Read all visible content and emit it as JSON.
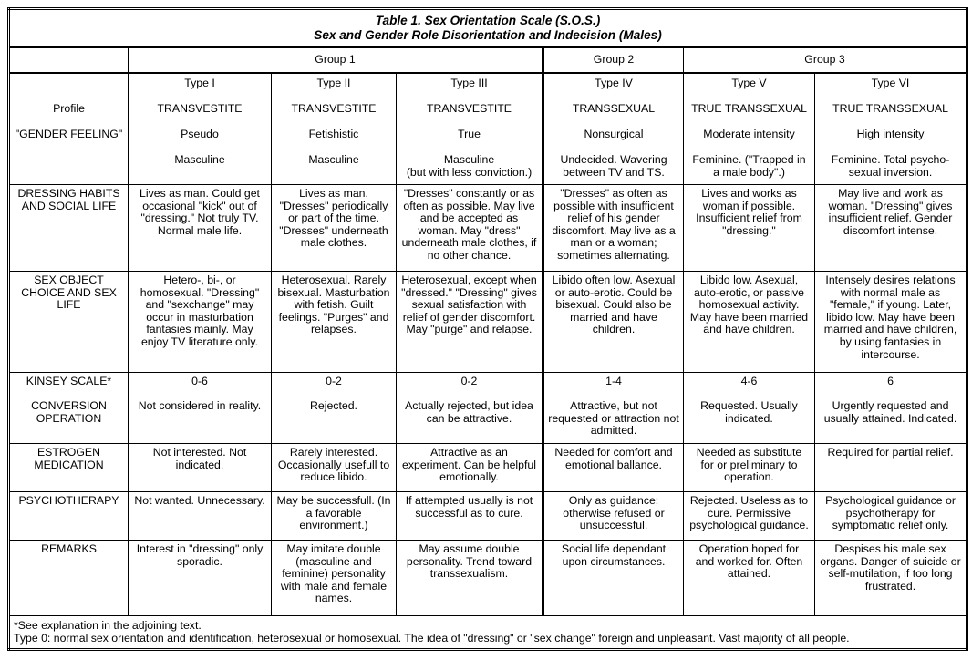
{
  "title": {
    "line1": "Table 1. Sex Orientation Scale (S.O.S.)",
    "line2": "Sex and Gender Role Disorientation and Indecision (Males)"
  },
  "groups": [
    {
      "label": "Group 1",
      "span": 3
    },
    {
      "label": "Group 2",
      "span": 1
    },
    {
      "label": "Group 3",
      "span": 2
    }
  ],
  "profile": {
    "label_lines": [
      "",
      "Profile",
      "\"GENDER FEELING\"",
      ""
    ],
    "types": [
      [
        "Type I",
        "TRANSVESTITE",
        "Pseudo",
        "Masculine"
      ],
      [
        "Type II",
        "TRANSVESTITE",
        "Fetishistic",
        "Masculine"
      ],
      [
        "Type III",
        "TRANSVESTITE",
        "True",
        "Masculine\n(but with less conviction.)"
      ],
      [
        "Type IV",
        "TRANSSEXUAL",
        "Nonsurgical",
        "Undecided. Wavering\nbetween TV and TS."
      ],
      [
        "Type V",
        "TRUE TRANSSEXUAL",
        "Moderate intensity",
        "Feminine. (\"Trapped in\na male body\".)"
      ],
      [
        "Type VI",
        "TRUE TRANSSEXUAL",
        "High intensity",
        "Feminine. Total psycho-\nsexual inversion."
      ]
    ]
  },
  "rows": [
    {
      "label": "DRESSING HABITS\nAND SOCIAL LIFE",
      "cells": [
        "Lives as man. Could get\noccasional \"kick\" out of\n\"dressing.\" Not truly TV.\nNormal male life.",
        "Lives as man.\n\"Dresses\" periodically\nor part of the time.\n\"Dresses\" underneath\nmale clothes.",
        "\"Dresses\" constantly or as\noften as possible. May live\nand be accepted as\nwoman. May \"dress\"\nunderneath male clothes, if\nno other chance.",
        "\"Dresses\" as often as\npossible with insufficient\nrelief of his gender\ndiscomfort. May live as a\nman or a woman;\nsometimes alternating.",
        "Lives and works as\nwoman if possible.\nInsufficient relief from\n\"dressing.\"",
        "May live and work as\nwoman. \"Dressing\" gives\ninsufficient relief. Gender\ndiscomfort intense."
      ]
    },
    {
      "label": "SEX OBJECT\nCHOICE AND SEX\nLIFE",
      "cells": [
        "Hetero-, bi-, or\nhomosexual. \"Dressing\"\nand \"sexchange\" may\noccur in masturbation\nfantasies mainly. May\nenjoy TV literature only.",
        "Heterosexual. Rarely\nbisexual. Masturbation\nwith fetish. Guilt\nfeelings. \"Purges\" and\nrelapses.",
        "Heterosexual, except when\n\"dressed.\" \"Dressing\" gives\nsexual satisfaction with\nrelief of gender discomfort.\nMay \"purge\" and relapse.",
        "Libido often low. Asexual\nor auto-erotic. Could be\nbisexual. Could also be\nmarried and have\nchildren.",
        "Libido low. Asexual,\nauto-erotic, or passive\nhomosexual activity.\nMay have been married\nand have children.",
        "Intensely desires relations\nwith normal male as\n\"female,\" if young. Later,\nlibido low. May have been\nmarried and have children,\nby using fantasies in\nintercourse."
      ]
    },
    {
      "label": "KINSEY SCALE*",
      "cells": [
        "0-6",
        "0-2",
        "0-2",
        "1-4",
        "4-6",
        "6"
      ]
    },
    {
      "label": "CONVERSION\nOPERATION",
      "cells": [
        "Not considered in reality.",
        "Rejected.",
        "Actually rejected, but idea\ncan be attractive.",
        "Attractive, but not\nrequested or attraction not\nadmitted.",
        "Requested. Usually\nindicated.",
        "Urgently requested and\nusually attained. Indicated."
      ]
    },
    {
      "label": "ESTROGEN\nMEDICATION",
      "cells": [
        "Not interested. Not\nindicated.",
        "Rarely interested.\nOccasionally usefull to\nreduce libido.",
        "Attractive as an\nexperiment. Can be helpful\nemotionally.",
        "Needed for comfort and\nemotional ballance.",
        "Needed as substitute\nfor or preliminary to\noperation.",
        "Required for partial relief."
      ]
    },
    {
      "label": "PSYCHOTHERAPY",
      "cells": [
        "Not wanted. Unnecessary.",
        "May be successfull. (In\na favorable\nenvironment.)",
        "If attempted usually is not\nsuccessful as to cure.",
        "Only as guidance;\notherwise refused or\nunsuccessful.",
        "Rejected. Useless as to\ncure. Permissive\npsychological guidance.",
        "Psychological guidance or\npsychotherapy for\nsymptomatic relief only."
      ]
    },
    {
      "label": "REMARKS",
      "cells": [
        "Interest in \"dressing\" only\nsporadic.",
        "May imitate double\n(masculine and\nfeminine) personality\nwith male and female\nnames.",
        "May assume double\npersonality. Trend toward\ntranssexualism.",
        "Social life dependant\nupon circumstances.",
        "Operation hoped for\nand worked for. Often\nattained.",
        "Despises his male sex\norgans. Danger of suicide or\nself-mutilation, if too long\nfrustrated."
      ]
    }
  ],
  "footnote": {
    "line1": "*See explanation in the adjoining text.",
    "line2": "Type 0: normal sex orientation and identification, heterosexual or homosexual. The idea of \"dressing\" or \"sex change\" foreign and unpleasant. Vast majority of all people."
  }
}
